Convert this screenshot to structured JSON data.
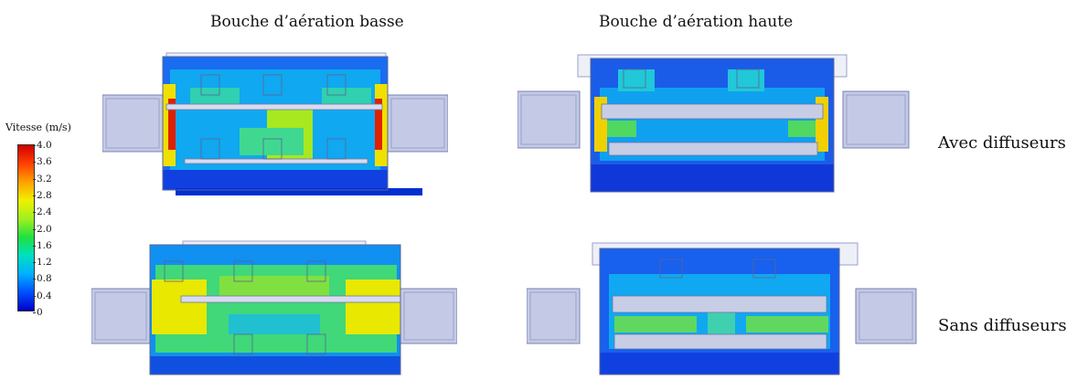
{
  "columns": [
    "Bouche d’aération basse",
    "Bouche d’aération haute"
  ],
  "rows": [
    "Avec diffuseurs",
    "Sans diffuseurs"
  ],
  "legend": {
    "title": "Vitesse (m/s)",
    "min": 0,
    "max": 4.0,
    "ticks": [
      "4.0",
      "3.6",
      "3.2",
      "2.8",
      "2.4",
      "2.0",
      "1.6",
      "1.2",
      "0.8",
      "0.4",
      "0"
    ],
    "colormap": [
      "#0000c8",
      "#0050ff",
      "#00b0ff",
      "#00e0c0",
      "#20e040",
      "#a0f020",
      "#f0f000",
      "#ffa000",
      "#ff4000",
      "#d00000"
    ]
  },
  "panels": [
    {
      "row": "Avec diffuseurs",
      "column": "Bouche d’aération basse"
    },
    {
      "row": "Avec diffuseurs",
      "column": "Bouche d’aération haute"
    },
    {
      "row": "Sans diffuseurs",
      "column": "Bouche d’aération basse"
    },
    {
      "row": "Sans diffuseurs",
      "column": "Bouche d’aération haute"
    }
  ]
}
